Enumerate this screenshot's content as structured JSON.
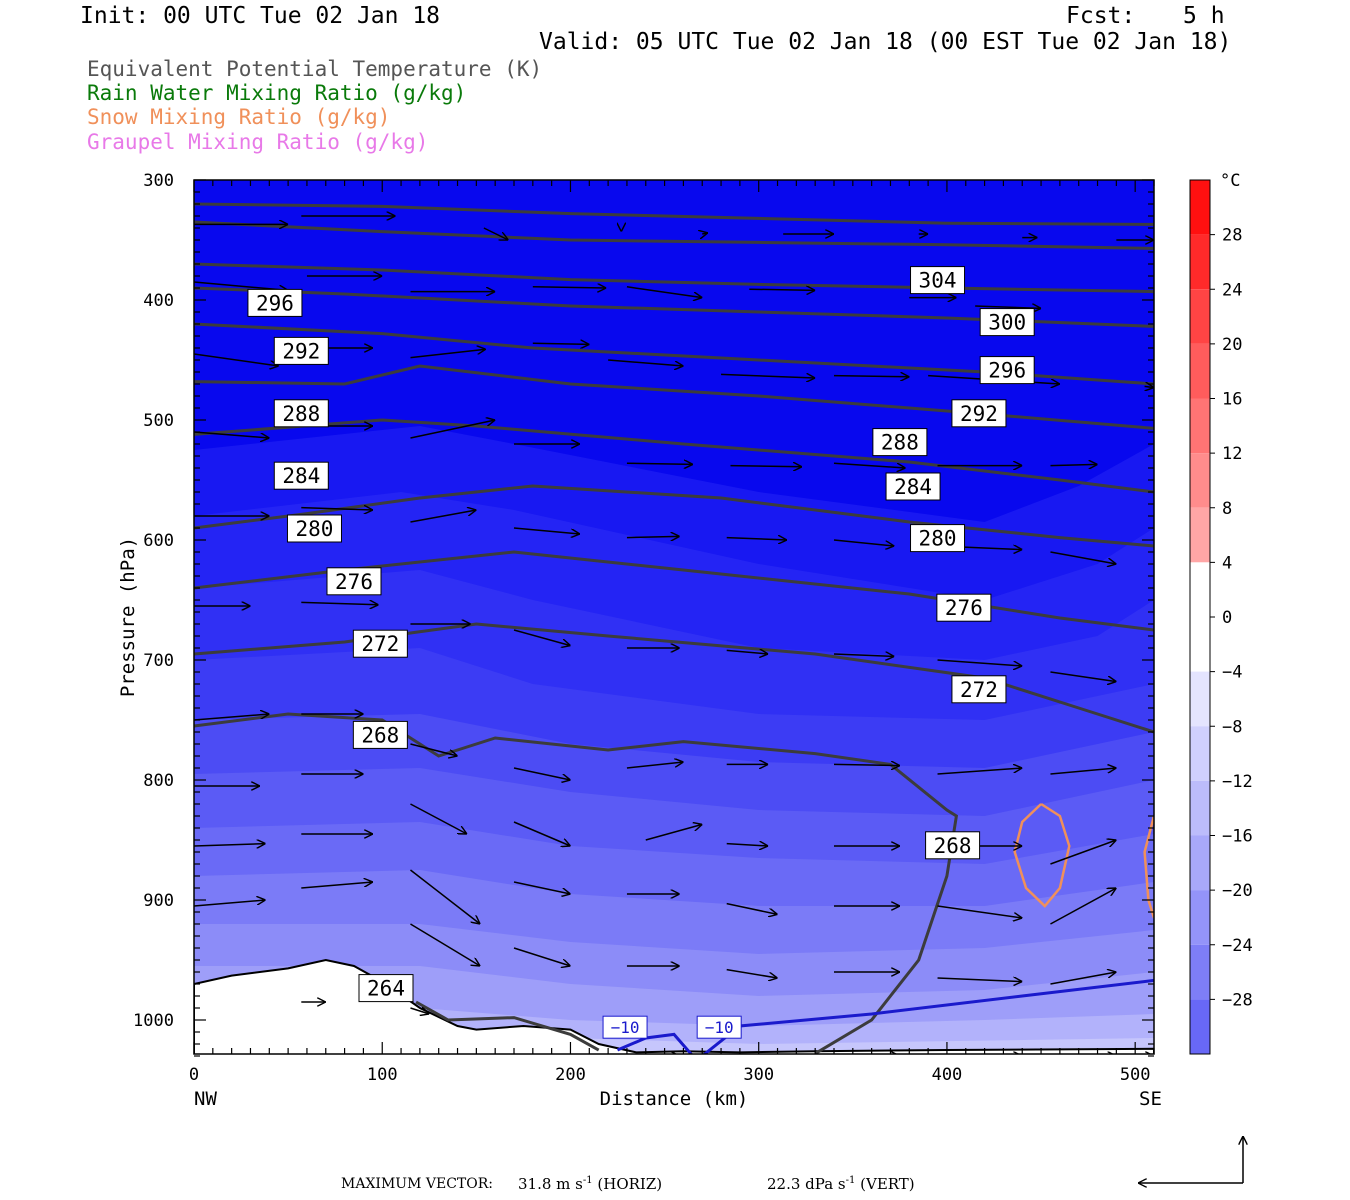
{
  "header": {
    "init": "Init: 00 UTC Tue 02 Jan 18",
    "fcst_label": "Fcst:",
    "fcst_value": "5 h",
    "valid": "Valid: 05 UTC Tue 02 Jan 18 (00 EST Tue 02 Jan 18)"
  },
  "legend": [
    {
      "label": "Equivalent Potential Temperature (K)",
      "color": "#555555"
    },
    {
      "label": "Rain Water Mixing Ratio (g/kg)",
      "color": "#0a7a0a"
    },
    {
      "label": "Snow Mixing Ratio (g/kg)",
      "color": "#f0905a"
    },
    {
      "label": "Graupel Mixing Ratio (g/kg)",
      "color": "#e879e8"
    }
  ],
  "footer": {
    "max_vector_label": "MAXIMUM VECTOR:",
    "horiz": "31.8 m s",
    "horiz_exp": "-1",
    "horiz_tag": "(HORIZ)",
    "vert": "22.3 dPa s",
    "vert_exp": "-1",
    "vert_tag": "(VERT)"
  },
  "colors": {
    "theta_e": "#3c3c3c",
    "temp_minus10": "#1a1acc",
    "snow": "#f0905a",
    "arrows": "#000000"
  },
  "chart_data": {
    "type": "cross-section",
    "xlabel": "Distance (km)",
    "ylabel": "Pressure (hPa)",
    "xlim": [
      0,
      510
    ],
    "ylim": [
      1030,
      300
    ],
    "x_ticks": [
      0,
      100,
      200,
      300,
      400,
      500
    ],
    "y_ticks": [
      300,
      400,
      500,
      600,
      700,
      800,
      900,
      1000
    ],
    "left_end_label": "NW",
    "right_end_label": "SE",
    "colorbar": {
      "unit": "°C",
      "range": [
        -32,
        32
      ],
      "step": 4,
      "tick_labels": [
        "28",
        "24",
        "20",
        "16",
        "12",
        "8",
        "4",
        "0",
        "−4",
        "−8",
        "−12",
        "−16",
        "−20",
        "−24",
        "−28"
      ],
      "tick_values": [
        28,
        24,
        20,
        16,
        12,
        8,
        4,
        0,
        -4,
        -8,
        -12,
        -16,
        -20,
        -24,
        -28
      ]
    },
    "theta_e_labels": [
      {
        "text": "304",
        "x": 395,
        "p": 383
      },
      {
        "text": "300",
        "x": 432,
        "p": 418
      },
      {
        "text": "296",
        "x": 43,
        "p": 402
      },
      {
        "text": "296",
        "x": 432,
        "p": 458
      },
      {
        "text": "292",
        "x": 57,
        "p": 442
      },
      {
        "text": "292",
        "x": 417,
        "p": 494
      },
      {
        "text": "288",
        "x": 57,
        "p": 494
      },
      {
        "text": "288",
        "x": 375,
        "p": 518
      },
      {
        "text": "284",
        "x": 57,
        "p": 546
      },
      {
        "text": "284",
        "x": 382,
        "p": 555
      },
      {
        "text": "280",
        "x": 64,
        "p": 590
      },
      {
        "text": "280",
        "x": 395,
        "p": 598
      },
      {
        "text": "276",
        "x": 85,
        "p": 634
      },
      {
        "text": "276",
        "x": 409,
        "p": 656
      },
      {
        "text": "272",
        "x": 99,
        "p": 686
      },
      {
        "text": "272",
        "x": 417,
        "p": 724
      },
      {
        "text": "268",
        "x": 99,
        "p": 762
      },
      {
        "text": "268",
        "x": 403,
        "p": 854
      },
      {
        "text": "264",
        "x": 102,
        "p": 973
      }
    ],
    "temp_labels": [
      {
        "text": "−10",
        "x": 229,
        "p": 1006
      },
      {
        "text": "−10",
        "x": 279,
        "p": 1006
      }
    ]
  }
}
